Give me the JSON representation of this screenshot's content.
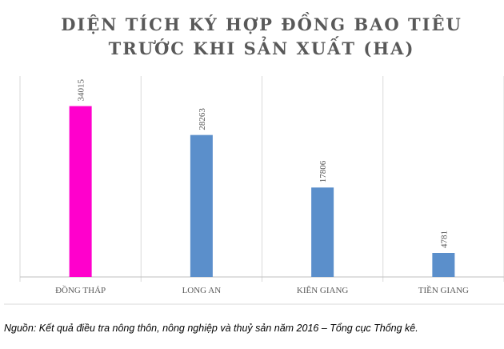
{
  "chart_data": {
    "type": "bar",
    "title_lines": [
      "DIỆN TÍCH KÝ HỢP ĐỒNG BAO TIÊU",
      "TRƯỚC KHI SẢN XUẤT (HA)"
    ],
    "categories": [
      "ĐỒNG THÁP",
      "LONG AN",
      "KIÊN GIANG",
      "TIỀN GIANG"
    ],
    "values": [
      34015,
      28263,
      17806,
      4781
    ],
    "colors": [
      "#ff00cc",
      "#5b8fcb",
      "#5b8fcb",
      "#5b8fcb"
    ],
    "ylim": [
      0,
      40000
    ],
    "source": "Nguồn: Kết quả điều tra nông thôn, nông nghiệp và thuỷ sản năm 2016 – Tổng cục Thống kê."
  }
}
